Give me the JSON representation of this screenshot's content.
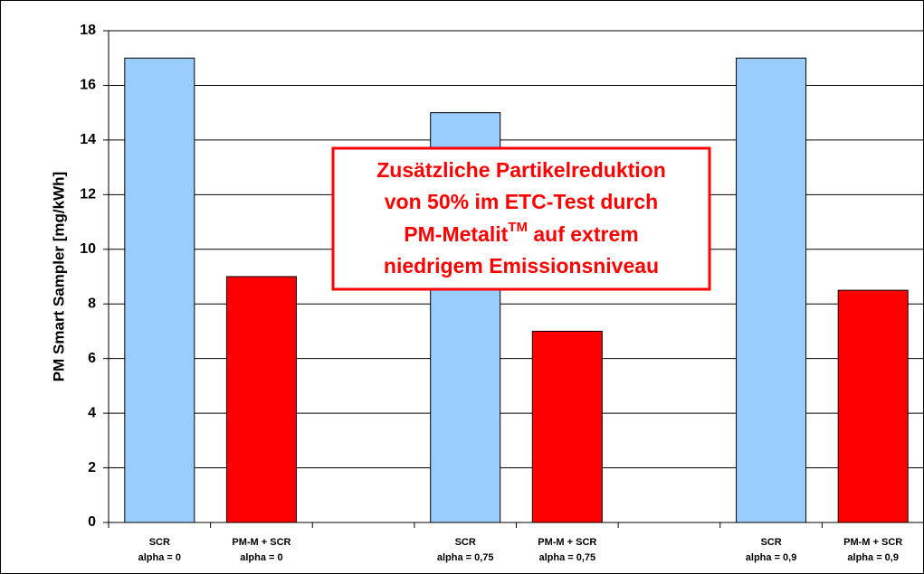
{
  "chart_data": {
    "type": "bar",
    "ylabel": "PM Smart Sampler [mg/kWh]",
    "categories": [
      [
        "SCR",
        "alpha = 0"
      ],
      [
        "PM-M + SCR",
        "alpha = 0"
      ],
      null,
      [
        "SCR",
        "alpha = 0,75"
      ],
      [
        "PM-M + SCR",
        "alpha = 0,75"
      ],
      null,
      [
        "SCR",
        "alpha = 0,9"
      ],
      [
        "PM-M + SCR",
        "alpha = 0,9"
      ]
    ],
    "values": [
      17,
      9,
      null,
      15,
      7,
      null,
      17,
      8.5
    ],
    "colors": [
      "#99ccff",
      "#ff0000",
      null,
      "#99ccff",
      "#ff0000",
      null,
      "#99ccff",
      "#ff0000"
    ],
    "ylim": [
      0,
      18
    ],
    "yticks": [
      0,
      2,
      4,
      6,
      8,
      10,
      12,
      14,
      16,
      18
    ],
    "grid": true,
    "annotation": {
      "line1": "Zusätzliche Partikelreduktion",
      "line2": "von 50% im ETC-Test durch",
      "line3": {
        "text": "PM-Metalit",
        "sup": "TM",
        "rest": " auf extrem"
      },
      "line4": "niedrigem Emissionsniveau"
    }
  }
}
